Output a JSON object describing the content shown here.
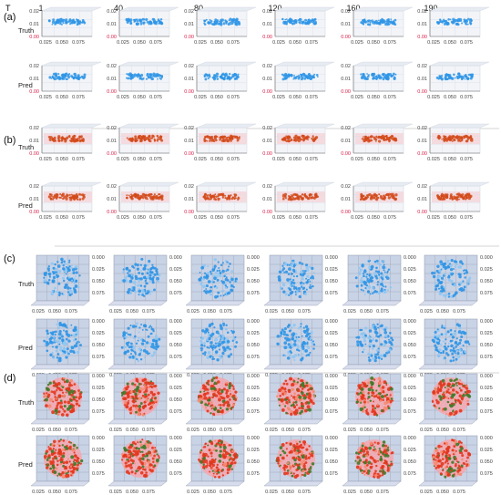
{
  "header": {
    "t_label": "T",
    "timesteps": [
      "1",
      "40",
      "80",
      "120",
      "160",
      "190"
    ]
  },
  "row_labels": {
    "truth": "Truth",
    "pred": "Pred"
  },
  "colors": {
    "blue": "#2f95e6",
    "blue_light": "#8fc7f2",
    "red": "#e3361d",
    "orange": "#d24a1a",
    "green": "#3f7a2a",
    "pink": "#f6a5ad",
    "pane_blue": "#c9d3e6",
    "pane_pink": "#f4d6dc",
    "grid": "#9aa3b5",
    "zero_red": "#d9204a"
  },
  "chart_data": [
    {
      "type": "scatter",
      "panel": "(a)",
      "view": "side",
      "point_color": "blue",
      "rows": [
        "Truth",
        "Pred"
      ],
      "columns": [
        "1",
        "40",
        "80",
        "120",
        "160",
        "190"
      ],
      "x_ticks": [
        "0.025",
        "0.050",
        "0.075"
      ],
      "y_ticks": [
        "0.00",
        "0.01",
        "0.02"
      ],
      "y_zero_red": true
    },
    {
      "type": "scatter",
      "panel": "(b)",
      "view": "side",
      "point_color": "orange",
      "rows": [
        "Truth",
        "Pred"
      ],
      "columns": [
        "1",
        "40",
        "80",
        "120",
        "160",
        "190"
      ],
      "x_ticks": [
        "0.025",
        "0.050",
        "0.075"
      ],
      "y_ticks": [
        "0.00",
        "0.01",
        "0.02"
      ],
      "y_zero_red": true
    },
    {
      "type": "scatter",
      "panel": "(c)",
      "view": "top",
      "point_color": "blue",
      "rows": [
        "Truth",
        "Pred"
      ],
      "columns": [
        "1",
        "40",
        "80",
        "120",
        "160",
        "190"
      ],
      "x_ticks": [
        "0.025",
        "0.050",
        "0.075"
      ],
      "y_ticks": [
        "0.000",
        "0.025",
        "0.050",
        "0.075"
      ]
    },
    {
      "type": "scatter",
      "panel": "(d)",
      "view": "top",
      "point_color": "red",
      "rows": [
        "Truth",
        "Pred"
      ],
      "columns": [
        "1",
        "40",
        "80",
        "120",
        "160",
        "190"
      ],
      "x_ticks": [
        "0.025",
        "0.050",
        "0.075"
      ],
      "y_ticks": [
        "0.000",
        "0.025",
        "0.050",
        "0.075"
      ]
    }
  ]
}
